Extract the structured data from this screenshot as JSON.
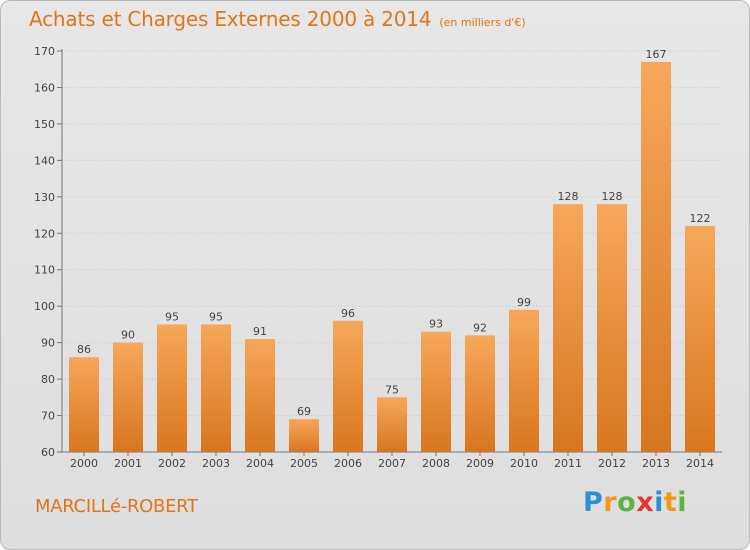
{
  "header": {
    "title": "Achats et Charges Externes 2000 à 2014",
    "unit": "(en milliers d'€)"
  },
  "footer": {
    "location": "MARCILLé-ROBERT",
    "logo_letters": [
      "P",
      "r",
      "o",
      "x",
      "i",
      "t",
      "i"
    ]
  },
  "colors": {
    "title": "#e0751a",
    "bar_top": "#f7a75a",
    "bar_bottom": "#d8761f"
  },
  "chart_data": {
    "type": "bar",
    "title": "Achats et Charges Externes 2000 à 2014",
    "subtitle": "(en milliers d'€)",
    "xlabel": "",
    "ylabel": "",
    "categories": [
      "2000",
      "2001",
      "2002",
      "2003",
      "2004",
      "2005",
      "2006",
      "2007",
      "2008",
      "2009",
      "2010",
      "2011",
      "2012",
      "2013",
      "2014"
    ],
    "values": [
      86,
      90,
      95,
      95,
      91,
      69,
      96,
      75,
      93,
      92,
      99,
      128,
      128,
      167,
      122
    ],
    "ylim": [
      60,
      170
    ],
    "yticks": [
      60,
      70,
      80,
      90,
      100,
      110,
      120,
      130,
      140,
      150,
      160,
      170
    ],
    "grid": true,
    "data_labels": true
  }
}
